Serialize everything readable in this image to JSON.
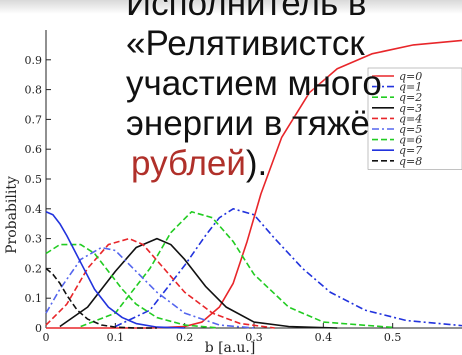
{
  "chart_data": {
    "type": "line",
    "xlabel": "b [a.u.]",
    "ylabel": "Probability",
    "xlim": [
      0,
      0.6
    ],
    "ylim": [
      0,
      1.0
    ],
    "x_ticks": [
      "0",
      "0.1",
      "0.2",
      "0.3",
      "0.4",
      "0.5"
    ],
    "x_tick_values": [
      0,
      0.1,
      0.2,
      0.3,
      0.4,
      0.5
    ],
    "y_ticks": [
      "0",
      "0.1",
      "0.2",
      "0.3",
      "0.4",
      "0.5",
      "0.6",
      "0.7",
      "0.8",
      "0.9"
    ],
    "y_tick_values": [
      0,
      0.1,
      0.2,
      0.3,
      0.4,
      0.5,
      0.6,
      0.7,
      0.8,
      0.9
    ],
    "grid": false,
    "legend_position": "top-right",
    "series": [
      {
        "name": "q=0",
        "color": "#e8262a",
        "dash": "solid",
        "x": [
          0,
          0.15,
          0.2,
          0.225,
          0.25,
          0.27,
          0.29,
          0.31,
          0.34,
          0.38,
          0.42,
          0.47,
          0.53,
          0.6
        ],
        "y": [
          0,
          0,
          0.005,
          0.02,
          0.07,
          0.15,
          0.29,
          0.45,
          0.64,
          0.79,
          0.87,
          0.92,
          0.95,
          0.965
        ]
      },
      {
        "name": "q=1",
        "color": "#2233dd",
        "dash": "dashdot",
        "x": [
          0.1,
          0.15,
          0.2,
          0.23,
          0.25,
          0.27,
          0.3,
          0.33,
          0.37,
          0.41,
          0.46,
          0.52,
          0.6
        ],
        "y": [
          0.005,
          0.06,
          0.21,
          0.31,
          0.37,
          0.4,
          0.38,
          0.3,
          0.2,
          0.12,
          0.06,
          0.025,
          0.008
        ]
      },
      {
        "name": "q=2",
        "color": "#22cc22",
        "dash": "dashed",
        "x": [
          0.05,
          0.1,
          0.15,
          0.18,
          0.21,
          0.24,
          0.27,
          0.3,
          0.35,
          0.4,
          0.5
        ],
        "y": [
          0.005,
          0.05,
          0.2,
          0.32,
          0.39,
          0.37,
          0.29,
          0.18,
          0.07,
          0.02,
          0.002
        ]
      },
      {
        "name": "q=3",
        "color": "#111111",
        "dash": "solid",
        "x": [
          0.02,
          0.06,
          0.1,
          0.13,
          0.16,
          0.18,
          0.2,
          0.23,
          0.26,
          0.3,
          0.35,
          0.42
        ],
        "y": [
          0.005,
          0.07,
          0.19,
          0.27,
          0.3,
          0.28,
          0.23,
          0.14,
          0.07,
          0.02,
          0.005,
          0
        ]
      },
      {
        "name": "q=4",
        "color": "#e8262a",
        "dash": "dashed",
        "x": [
          0.0,
          0.03,
          0.06,
          0.09,
          0.12,
          0.14,
          0.17,
          0.2,
          0.24,
          0.28,
          0.33
        ],
        "y": [
          0.01,
          0.08,
          0.2,
          0.28,
          0.3,
          0.28,
          0.2,
          0.12,
          0.05,
          0.015,
          0
        ]
      },
      {
        "name": "q=5",
        "color": "#5566ee",
        "dash": "dashdot",
        "x": [
          0.0,
          0.02,
          0.05,
          0.08,
          0.1,
          0.13,
          0.16,
          0.2,
          0.25,
          0.3
        ],
        "y": [
          0.05,
          0.13,
          0.23,
          0.27,
          0.26,
          0.19,
          0.12,
          0.05,
          0.01,
          0
        ]
      },
      {
        "name": "q=6",
        "color": "#22cc22",
        "dash": "dashed",
        "x": [
          0.0,
          0.02,
          0.05,
          0.07,
          0.09,
          0.11,
          0.13,
          0.16,
          0.2,
          0.25
        ],
        "y": [
          0.25,
          0.28,
          0.28,
          0.25,
          0.19,
          0.13,
          0.08,
          0.035,
          0.01,
          0
        ]
      },
      {
        "name": "q=7",
        "color": "#2233dd",
        "dash": "solid",
        "x": [
          0.0,
          0.01,
          0.02,
          0.03,
          0.05,
          0.07,
          0.09,
          0.11,
          0.13,
          0.16,
          0.2
        ],
        "y": [
          0.39,
          0.38,
          0.35,
          0.31,
          0.22,
          0.13,
          0.07,
          0.035,
          0.015,
          0.003,
          0
        ]
      },
      {
        "name": "q=8",
        "color": "#111111",
        "dash": "dashed",
        "x": [
          0.0,
          0.01,
          0.02,
          0.03,
          0.045,
          0.06,
          0.08,
          0.1,
          0.13,
          0.16
        ],
        "y": [
          0.2,
          0.18,
          0.15,
          0.11,
          0.06,
          0.03,
          0.01,
          0.003,
          0,
          0
        ]
      }
    ]
  },
  "overlay": {
    "line1": "Исполнитель в",
    "line2": "«Релятивистск",
    "line3": "участием много",
    "line4": "энергии в тяжё",
    "line5_link": "рублей",
    "line5_rest": ")."
  }
}
